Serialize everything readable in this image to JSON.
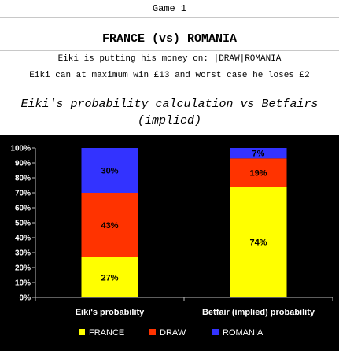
{
  "header": {
    "game_label": "Game 1",
    "match_title": "FRANCE (vs) ROMANIA",
    "bet_line": "Eiki is putting his money on: |DRAW|ROMANIA",
    "win_line": "Eiki can at maximum win £13 and worst case he loses £2",
    "section_title": "Eiki's probability calculation vs Betfairs (implied)"
  },
  "chart_data": {
    "type": "bar",
    "stacked": true,
    "categories": [
      "Eiki's probability",
      "Betfair (implied) probability"
    ],
    "series": [
      {
        "name": "FRANCE",
        "values": [
          27,
          74
        ],
        "labels": [
          "27%",
          "74%"
        ],
        "color": "#ffff00"
      },
      {
        "name": "DRAW",
        "values": [
          43,
          19
        ],
        "labels": [
          "43%",
          "19%"
        ],
        "color": "#ff3300"
      },
      {
        "name": "ROMANIA",
        "values": [
          30,
          7
        ],
        "labels": [
          "30%",
          "7%"
        ],
        "color": "#3333ff"
      }
    ],
    "ylim": [
      0,
      100
    ],
    "yticks": [
      "0%",
      "10%",
      "20%",
      "30%",
      "40%",
      "50%",
      "60%",
      "70%",
      "80%",
      "90%",
      "100%"
    ],
    "legend_position": "bottom",
    "background": "#000000",
    "text_color": "#ffffff"
  }
}
